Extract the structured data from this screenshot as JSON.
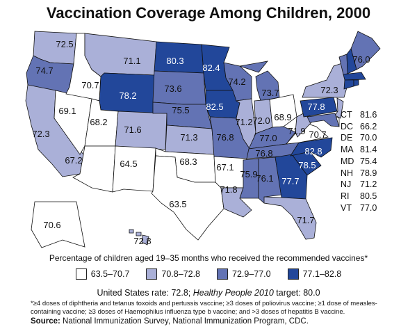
{
  "title": "Vaccination Coverage Among Children, 2000",
  "subtitle": "Percentage of children aged 19–35 months who received the recommended vaccines*",
  "legend": [
    {
      "label": "63.5–70.7",
      "color": "#ffffff",
      "min": 63.5,
      "max": 70.7
    },
    {
      "label": "70.8–72.8",
      "color": "#aab0d8",
      "min": 70.8,
      "max": 72.8
    },
    {
      "label": "72.9–77.0",
      "color": "#6373b4",
      "min": 72.9,
      "max": 77.0
    },
    {
      "label": "77.1–82.8",
      "color": "#22479a",
      "min": 77.1,
      "max": 82.8
    }
  ],
  "rate": {
    "prefix": "United States rate: 72.8; ",
    "italic": "Healthy People 2010",
    "suffix": " target: 80.0"
  },
  "footnote": "*≥4 doses of diphtheria and tetanus toxoids and pertussis vaccine; ≥3 doses of poliovirus vaccine;  ≥1 dose of measles-containing vaccine; ≥3 doses of Haemophilus influenza type b vaccine; and >3 doses of hepatitis B vaccine.",
  "source": {
    "label": "Source:",
    "text": " National Immunization Survey, National Immunization Program, CDC."
  },
  "small_states": [
    {
      "state": "CT",
      "value": "81.6"
    },
    {
      "state": "DC",
      "value": "66.2"
    },
    {
      "state": "DE",
      "value": "70.0"
    },
    {
      "state": "MA",
      "value": "81.4"
    },
    {
      "state": "MD",
      "value": "75.4"
    },
    {
      "state": "NH",
      "value": "78.9"
    },
    {
      "state": "NJ",
      "value": "71.2"
    },
    {
      "state": "RI",
      "value": "80.5"
    },
    {
      "state": "VT",
      "value": "77.0"
    }
  ],
  "states": {
    "WA": 72.5,
    "OR": 74.7,
    "CA": 72.3,
    "NV": 69.1,
    "ID": 70.7,
    "MT": 71.1,
    "WY": 78.2,
    "UT": 68.2,
    "CO": 71.6,
    "AZ": 67.2,
    "NM": 64.5,
    "ND": 80.3,
    "SD": 73.6,
    "NE": 75.5,
    "KS": 71.3,
    "OK": 68.3,
    "TX": 63.5,
    "MN": 82.4,
    "IA": 82.5,
    "MO": 76.8,
    "AR": 67.1,
    "LA": 71.8,
    "WI": 74.2,
    "IL": 71.2,
    "MI": 73.7,
    "IN": 72.0,
    "OH": 68.9,
    "KY": 77.0,
    "TN": 76.8,
    "MS": 75.9,
    "AL": 76.1,
    "GA": 77.7,
    "FL": 71.7,
    "SC": 78.5,
    "NC": 82.8,
    "VA": 70.7,
    "WV": 71.9,
    "PA": 77.8,
    "NY": 72.3,
    "ME": 76.0,
    "VT": 77.0,
    "NH": 78.9,
    "MA": 81.4,
    "CT": 81.6,
    "RI": 80.5,
    "NJ": 71.2,
    "DE": 70.0,
    "MD": 75.4,
    "DC": 66.2,
    "AK": 70.6,
    "HI": 72.8
  }
}
